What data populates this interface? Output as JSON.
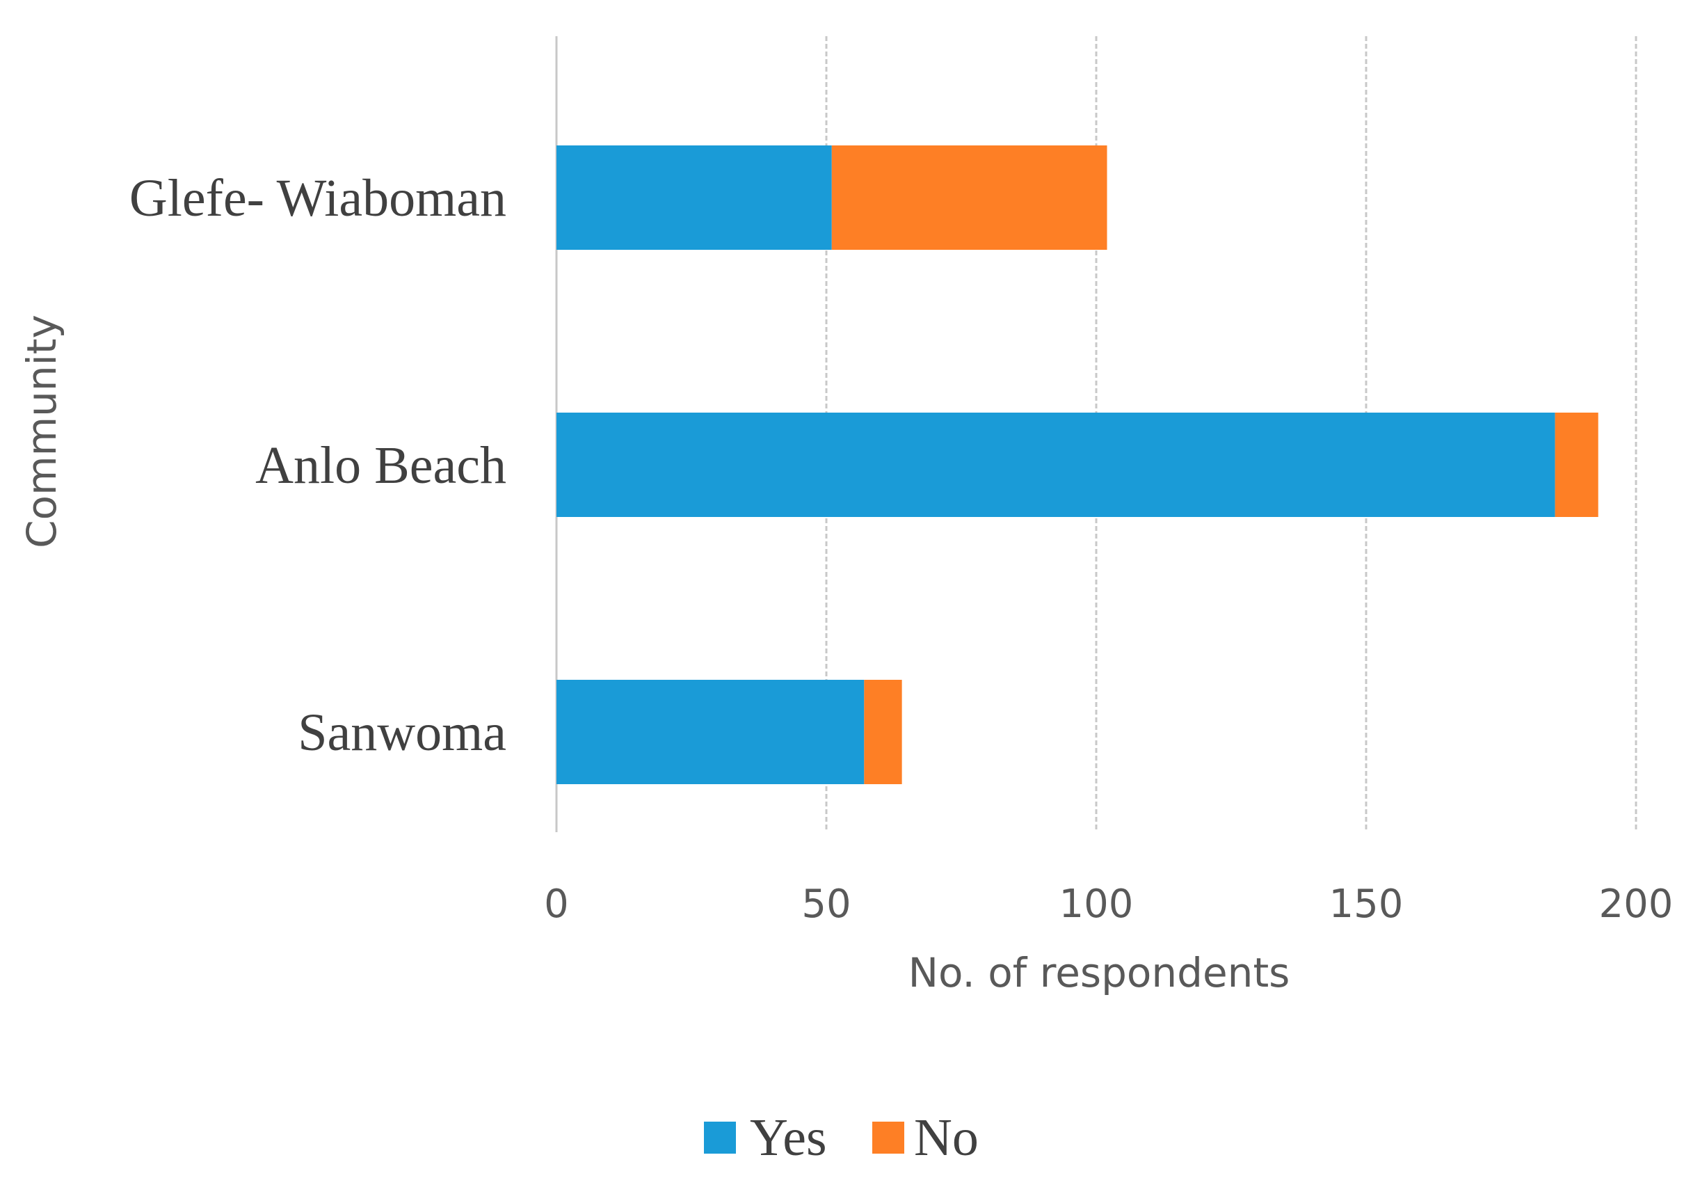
{
  "chart_data": {
    "type": "bar",
    "orientation": "horizontal",
    "stacked": true,
    "categories": [
      "Glefe- Wiaboman",
      "Anlo Beach",
      "Sanwoma"
    ],
    "series": [
      {
        "name": "Yes",
        "values": [
          51,
          185,
          57
        ]
      },
      {
        "name": "No",
        "values": [
          51,
          8,
          7
        ]
      }
    ],
    "colors": {
      "Yes": "#1a9bd7",
      "No": "#fe7f25"
    },
    "xlabel": "No. of respondents",
    "ylabel": "Community",
    "xlim": [
      0,
      200
    ],
    "xticks": [
      "0",
      "50",
      "100",
      "150",
      "200"
    ],
    "grid": "vertical-dashed",
    "legend_position": "bottom-center"
  }
}
